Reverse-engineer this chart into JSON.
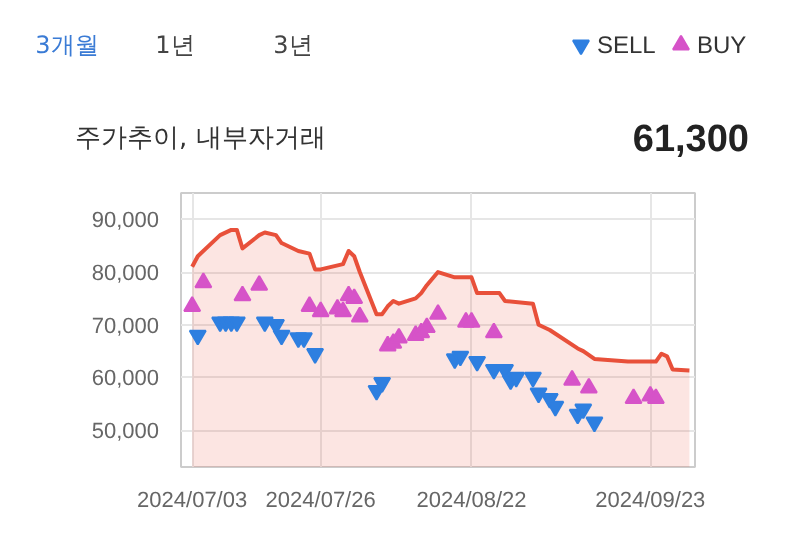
{
  "chart_data": {
    "type": "area",
    "title": "주가추이, 내부자거래",
    "annotations": [
      "3개월",
      "1년",
      "3년",
      "61,300"
    ],
    "xlim": [
      "2024-07-01",
      "2024-10-01"
    ],
    "xticks": [
      {
        "value": "2024-07-03",
        "label": "2024/07/03"
      },
      {
        "value": "2024-07-26",
        "label": "2024/07/26"
      },
      {
        "value": "2024-08-22",
        "label": "2024/08/22"
      },
      {
        "value": "2024-09-23",
        "label": "2024/09/23"
      }
    ],
    "ylim": [
      43000,
      95000
    ],
    "yticks": [
      {
        "value": 50000,
        "label": "50,000"
      },
      {
        "value": 60000,
        "label": "60,000"
      },
      {
        "value": 70000,
        "label": "70,000"
      },
      {
        "value": 80000,
        "label": "80,000"
      },
      {
        "value": 90000,
        "label": "90,000"
      }
    ],
    "grid": true,
    "legend": "top right",
    "series": [
      {
        "color": "#e8503a",
        "x": [
          "2024-07-03",
          "2024-07-04",
          "2024-07-08",
          "2024-07-10",
          "2024-07-11",
          "2024-07-12",
          "2024-07-15",
          "2024-07-16",
          "2024-07-18",
          "2024-07-19",
          "2024-07-22",
          "2024-07-24",
          "2024-07-25",
          "2024-07-26",
          "2024-07-30",
          "2024-07-31",
          "2024-08-01",
          "2024-08-02",
          "2024-08-05",
          "2024-08-06",
          "2024-08-07",
          "2024-08-08",
          "2024-08-09",
          "2024-08-12",
          "2024-08-13",
          "2024-08-14",
          "2024-08-16",
          "2024-08-19",
          "2024-08-22",
          "2024-08-23",
          "2024-08-27",
          "2024-08-28",
          "2024-09-02",
          "2024-09-03",
          "2024-09-05",
          "2024-09-10",
          "2024-09-11",
          "2024-09-13",
          "2024-09-19",
          "2024-09-24",
          "2024-09-25",
          "2024-09-26",
          "2024-09-27",
          "2024-09-30"
        ],
        "values": [
          81000,
          83000,
          87000,
          88000,
          88000,
          84500,
          87000,
          87500,
          87000,
          85500,
          84000,
          83500,
          80500,
          80500,
          81500,
          84000,
          83000,
          80000,
          72000,
          72000,
          73500,
          74500,
          74000,
          75000,
          76000,
          77500,
          80000,
          79000,
          79000,
          76000,
          76000,
          74500,
          74000,
          70000,
          69000,
          65500,
          65000,
          63500,
          63000,
          63000,
          64500,
          64000,
          61500,
          61300
        ]
      },
      {
        "type": "scatter",
        "name": "SELL",
        "color": "#2e7fe0",
        "marker": "triangle_down",
        "x": [
          "2024-07-04",
          "2024-07-08",
          "2024-07-09",
          "2024-07-10",
          "2024-07-11",
          "2024-07-16",
          "2024-07-18",
          "2024-07-19",
          "2024-07-22",
          "2024-07-23",
          "2024-07-25",
          "2024-08-05",
          "2024-08-06",
          "2024-08-19",
          "2024-08-20",
          "2024-08-23",
          "2024-08-26",
          "2024-08-28",
          "2024-08-29",
          "2024-08-30",
          "2024-09-02",
          "2024-09-03",
          "2024-09-05",
          "2024-09-06",
          "2024-09-10",
          "2024-09-11",
          "2024-09-13"
        ],
        "values": [
          68000,
          70500,
          70500,
          70500,
          70500,
          70500,
          70000,
          68000,
          67500,
          67500,
          64500,
          57500,
          59000,
          63500,
          64000,
          63000,
          61500,
          61500,
          59500,
          60000,
          60000,
          57000,
          56000,
          54500,
          53000,
          54000,
          51500
        ]
      },
      {
        "type": "scatter",
        "name": "BUY",
        "color": "#d653c8",
        "marker": "triangle",
        "x": [
          "2024-07-03",
          "2024-07-05",
          "2024-07-12",
          "2024-07-15",
          "2024-07-24",
          "2024-07-26",
          "2024-07-29",
          "2024-07-30",
          "2024-07-31",
          "2024-08-01",
          "2024-08-02",
          "2024-08-07",
          "2024-08-08",
          "2024-08-09",
          "2024-08-12",
          "2024-08-13",
          "2024-08-14",
          "2024-08-16",
          "2024-08-21",
          "2024-08-22",
          "2024-08-26",
          "2024-09-09",
          "2024-09-12",
          "2024-09-20",
          "2024-09-23",
          "2024-09-24"
        ],
        "values": [
          73500,
          78000,
          75500,
          77500,
          73500,
          72500,
          73000,
          72500,
          75500,
          75000,
          71500,
          66000,
          66500,
          67500,
          68000,
          68500,
          69500,
          72000,
          70500,
          70500,
          68500,
          59500,
          58000,
          56000,
          56500,
          56000
        ]
      }
    ]
  }
}
